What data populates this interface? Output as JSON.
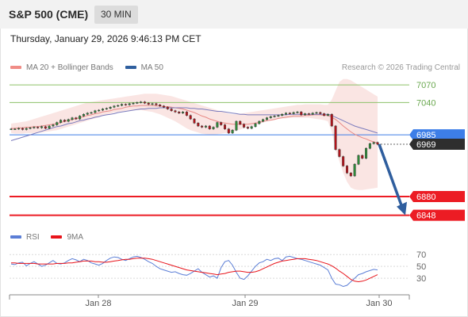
{
  "header": {
    "instrument": "S&P 500 (CME)",
    "timeframe": "30 MIN"
  },
  "timestamp": "Thursday, January 29, 2026 9:46:13 PM CET",
  "legend": {
    "main": [
      {
        "label": "MA 20 + Bollinger Bands",
        "color": "#f08c86"
      },
      {
        "label": "MA 50",
        "color": "#2f5f9e"
      }
    ],
    "rsi": [
      {
        "label": "RSI",
        "color": "#5b7ed6"
      },
      {
        "label": "9MA",
        "color": "#e8141b"
      }
    ]
  },
  "credit": "Research © 2026 Trading Central",
  "colors": {
    "up": "#2f8a3a",
    "down": "#b3131b",
    "support": "#ec1c24",
    "resistance": "#8cc168",
    "last": "#3d7ee8",
    "arrow": "#2f5e9e"
  },
  "chart_data": [
    {
      "type": "candlestick",
      "x_ticks": [
        "Jan 28",
        "Jan 29",
        "Jan 30"
      ],
      "ylim": [
        6830,
        7085
      ],
      "price_levels": [
        {
          "label": "7070",
          "value": 7070,
          "kind": "resistance"
        },
        {
          "label": "7040",
          "value": 7040,
          "kind": "resistance"
        },
        {
          "label": "6985",
          "value": 6985,
          "kind": "pivot"
        },
        {
          "label": "6969",
          "value": 6969,
          "kind": "last"
        },
        {
          "label": "6880",
          "value": 6880,
          "kind": "support"
        },
        {
          "label": "6848",
          "value": 6848,
          "kind": "support"
        }
      ],
      "closes": [
        6995,
        6995,
        6996,
        6994,
        6996,
        6997,
        6998,
        6997,
        6999,
        6996,
        7000,
        7002,
        7006,
        7010,
        7008,
        7011,
        7014,
        7012,
        7017,
        7020,
        7022,
        7023,
        7026,
        7027,
        7029,
        7030,
        7032,
        7034,
        7035,
        7037,
        7036,
        7038,
        7039,
        7040,
        7041,
        7039,
        7037,
        7038,
        7036,
        7034,
        7032,
        7029,
        7026,
        7024,
        7022,
        7024,
        7018,
        7012,
        7005,
        7000,
        6998,
        7000,
        6995,
        6998,
        7006,
        7002,
        6995,
        6988,
        6993,
        7008,
        7003,
        6998,
        6996,
        6999,
        7004,
        7008,
        7011,
        7014,
        7016,
        7017,
        7018,
        7020,
        7022,
        7021,
        7023,
        7024,
        7019,
        7021,
        7020,
        7022,
        7023,
        7021,
        7018,
        7020,
        7000,
        6960,
        6948,
        6932,
        6920,
        6915,
        6935,
        6950,
        6945,
        6962,
        6970,
        6972,
        6969
      ],
      "ma20": [
        6996,
        6996,
        6997,
        6997,
        6998,
        6998,
        6999,
        6999,
        7000,
        7001,
        7002,
        7003,
        7004,
        7006,
        7008,
        7009,
        7011,
        7013,
        7014,
        7016,
        7018,
        7019,
        7021,
        7022,
        7024,
        7025,
        7026,
        7028,
        7029,
        7030,
        7032,
        7033,
        7034,
        7034,
        7035,
        7035,
        7035,
        7035,
        7034,
        7034,
        7033,
        7033,
        7032,
        7031,
        7030,
        7029,
        7027,
        7025,
        7023,
        7020,
        7017,
        7015,
        7012,
        7010,
        7008,
        7006,
        7005,
        7004,
        7003,
        7003,
        7003,
        7003,
        7003,
        7004,
        7005,
        7006,
        7008,
        7009,
        7010,
        7011,
        7013,
        7014,
        7015,
        7016,
        7017,
        7017,
        7017,
        7018,
        7018,
        7019,
        7019,
        7019,
        7018,
        7018,
        7015,
        7011,
        7006,
        7000,
        6995,
        6990,
        6986,
        6983,
        6980,
        6978,
        6975,
        6973,
        6971
      ],
      "bb_upper": [
        7004,
        7005,
        7006,
        7007,
        7008,
        7010,
        7012,
        7014,
        7016,
        7018,
        7020,
        7022,
        7024,
        7026,
        7028,
        7030,
        7032,
        7034,
        7036,
        7038,
        7040,
        7041,
        7042,
        7043,
        7044,
        7045,
        7046,
        7047,
        7048,
        7049,
        7050,
        7051,
        7052,
        7053,
        7054,
        7055,
        7055,
        7055,
        7055,
        7054,
        7053,
        7052,
        7051,
        7049,
        7047,
        7045,
        7043,
        7041,
        7039,
        7037,
        7035,
        7033,
        7031,
        7029,
        7027,
        7025,
        7023,
        7021,
        7020,
        7020,
        7021,
        7022,
        7023,
        7024,
        7025,
        7026,
        7027,
        7028,
        7029,
        7030,
        7031,
        7032,
        7033,
        7034,
        7035,
        7036,
        7036,
        7037,
        7037,
        7037,
        7037,
        7037,
        7036,
        7036,
        7045,
        7060,
        7075,
        7080,
        7080,
        7078,
        7074,
        7070,
        7066,
        7062,
        7058,
        7054,
        7050
      ],
      "bb_lower": [
        6988,
        6987,
        6987,
        6987,
        6988,
        6988,
        6988,
        6989,
        6989,
        6990,
        6991,
        6992,
        6993,
        6995,
        6997,
        6999,
        7001,
        7003,
        7005,
        7007,
        7009,
        7011,
        7013,
        7015,
        7017,
        7019,
        7021,
        7023,
        7024,
        7025,
        7026,
        7027,
        7027,
        7027,
        7027,
        7026,
        7025,
        7024,
        7022,
        7020,
        7017,
        7014,
        7011,
        7008,
        7004,
        7000,
        6996,
        6993,
        6991,
        6989,
        6987,
        6986,
        6985,
        6985,
        6986,
        6987,
        6988,
        6989,
        6990,
        6992,
        6994,
        6996,
        6998,
        7000,
        7002,
        7004,
        7006,
        7008,
        7010,
        7011,
        7012,
        7013,
        7013,
        7014,
        7014,
        7014,
        7014,
        7014,
        7014,
        7013,
        7012,
        7011,
        7010,
        7008,
        6990,
        6960,
        6940,
        6920,
        6905,
        6895,
        6892,
        6891,
        6891,
        6892,
        6893,
        6894,
        6895
      ],
      "ma50": [
        6975,
        6977,
        6979,
        6981,
        6983,
        6985,
        6987,
        6989,
        6991,
        6993,
        6995,
        6997,
        6999,
        7000,
        7002,
        7004,
        7005,
        7007,
        7009,
        7010,
        7012,
        7013,
        7015,
        7016,
        7018,
        7019,
        7020,
        7021,
        7023,
        7024,
        7025,
        7026,
        7027,
        7028,
        7029,
        7029,
        7030,
        7030,
        7030,
        7031,
        7031,
        7031,
        7031,
        7031,
        7031,
        7031,
        7031,
        7030,
        7030,
        7029,
        7029,
        7028,
        7027,
        7026,
        7025,
        7025,
        7024,
        7023,
        7022,
        7021,
        7020,
        7020,
        7019,
        7019,
        7019,
        7019,
        7019,
        7019,
        7019,
        7019,
        7019,
        7019,
        7019,
        7020,
        7020,
        7020,
        7020,
        7020,
        7020,
        7020,
        7020,
        7020,
        7020,
        7020,
        7018,
        7015,
        7012,
        7009,
        7006,
        7003,
        7000,
        6998,
        6996,
        6994,
        6992,
        6990,
        6988
      ],
      "forecast": {
        "from": 6969,
        "to": 6848
      }
    },
    {
      "type": "line",
      "y_ticks": [
        "70",
        "50",
        "30"
      ],
      "ylim": [
        10,
        85
      ],
      "series": [
        {
          "name": "RSI",
          "values": [
            54,
            53,
            56,
            57,
            51,
            55,
            58,
            54,
            50,
            52,
            56,
            60,
            55,
            54,
            56,
            60,
            63,
            61,
            58,
            62,
            60,
            56,
            54,
            52,
            55,
            60,
            64,
            66,
            65,
            62,
            60,
            63,
            66,
            67,
            65,
            62,
            58,
            55,
            50,
            46,
            44,
            42,
            40,
            41,
            38,
            36,
            35,
            38,
            42,
            46,
            40,
            36,
            32,
            34,
            30,
            48,
            58,
            60,
            52,
            40,
            30,
            28,
            34,
            42,
            50,
            56,
            58,
            62,
            60,
            63,
            64,
            60,
            66,
            67,
            65,
            63,
            62,
            60,
            58,
            56,
            54,
            52,
            48,
            44,
            30,
            20,
            19,
            16,
            18,
            24,
            30,
            36,
            38,
            41,
            43,
            45,
            44
          ]
        },
        {
          "name": "9MA",
          "values": [
            56,
            56,
            55,
            55,
            55,
            55,
            55,
            54,
            54,
            54,
            54,
            54,
            55,
            55,
            55,
            56,
            56,
            57,
            58,
            59,
            59,
            59,
            58,
            58,
            57,
            57,
            58,
            59,
            60,
            61,
            62,
            62,
            63,
            64,
            64,
            64,
            63,
            62,
            60,
            58,
            56,
            54,
            52,
            50,
            48,
            46,
            44,
            43,
            42,
            41,
            40,
            39,
            38,
            37,
            36,
            37,
            38,
            40,
            41,
            42,
            42,
            41,
            40,
            40,
            41,
            43,
            46,
            49,
            52,
            55,
            57,
            59,
            60,
            61,
            62,
            63,
            63,
            63,
            62,
            61,
            60,
            58,
            56,
            54,
            51,
            47,
            42,
            38,
            33,
            28,
            25,
            24,
            25,
            27,
            30,
            33,
            36
          ]
        }
      ]
    }
  ]
}
